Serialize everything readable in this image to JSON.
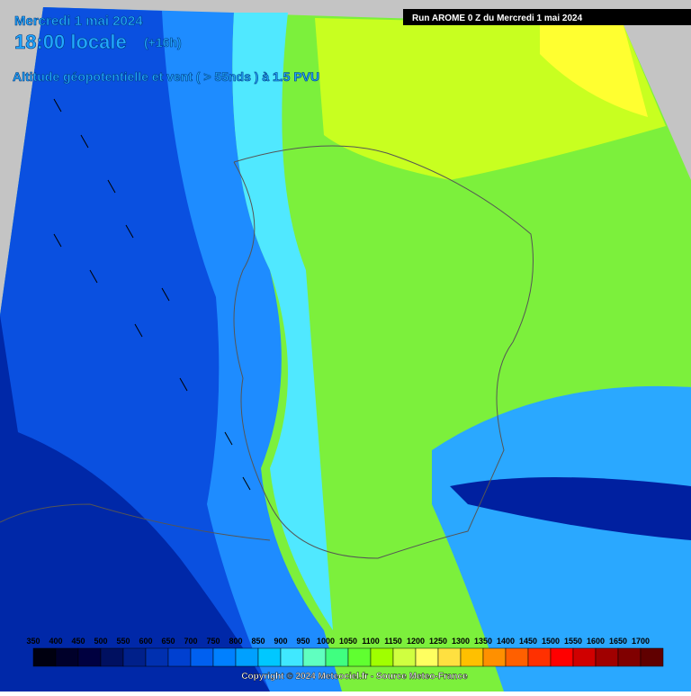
{
  "header": {
    "date": "Mercredi 1 mai 2024",
    "time": "18:00 locale",
    "lead": "(+16h)",
    "field": "Altitude géopotentielle et vent ( > 55nds ) à 1.5 PVU",
    "run": "Run AROME 0 Z du Mercredi 1 mai 2024"
  },
  "colorbar": {
    "values": [
      350,
      400,
      450,
      500,
      550,
      600,
      650,
      700,
      750,
      800,
      850,
      900,
      950,
      1000,
      1050,
      1100,
      1150,
      1200,
      1250,
      1300,
      1350,
      1400,
      1450,
      1500,
      1550,
      1600,
      1650,
      1700
    ],
    "colors": [
      "#000010",
      "#00002a",
      "#000040",
      "#001060",
      "#00208a",
      "#0030b0",
      "#0040d0",
      "#0060f0",
      "#0080ff",
      "#00a0ff",
      "#00c8ff",
      "#40e8ff",
      "#60ffc0",
      "#40ff80",
      "#60ff30",
      "#a0ff00",
      "#d0ff40",
      "#ffff60",
      "#ffe040",
      "#ffc000",
      "#ff9000",
      "#ff6000",
      "#ff3000",
      "#ff0000",
      "#d00000",
      "#a00000",
      "#800000",
      "#600000"
    ]
  },
  "footer": {
    "copyright": "Copyright © 2024 Meteociel.fr - Source Meteo-France"
  }
}
